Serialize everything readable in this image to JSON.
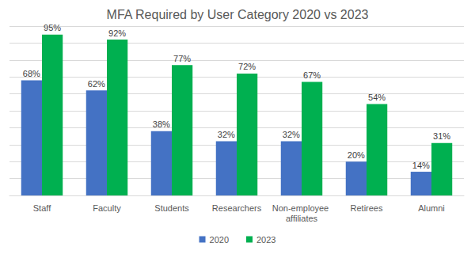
{
  "chart_data": {
    "type": "bar",
    "title": "MFA Required by User Category 2020 vs 2023",
    "categories": [
      "Staff",
      "Faculty",
      "Students",
      "Researchers",
      "Non-employee affiliates",
      "Retirees",
      "Alumni"
    ],
    "series": [
      {
        "name": "2020",
        "color": "#4472c4",
        "values": [
          68,
          62,
          38,
          32,
          32,
          20,
          14
        ],
        "value_labels": [
          "68%",
          "62%",
          "38%",
          "32%",
          "32%",
          "20%",
          "14%"
        ]
      },
      {
        "name": "2023",
        "color": "#00b050",
        "values": [
          95,
          92,
          77,
          72,
          67,
          54,
          31
        ],
        "value_labels": [
          "95%",
          "92%",
          "77%",
          "72%",
          "67%",
          "54%",
          "31%"
        ]
      }
    ],
    "ylim": [
      0,
      100
    ],
    "yticks": [
      0,
      10,
      20,
      30,
      40,
      50,
      60,
      70,
      80,
      90,
      100
    ],
    "grid": true,
    "legend": "bottom",
    "data_labels": true,
    "tick_labels": "x"
  }
}
